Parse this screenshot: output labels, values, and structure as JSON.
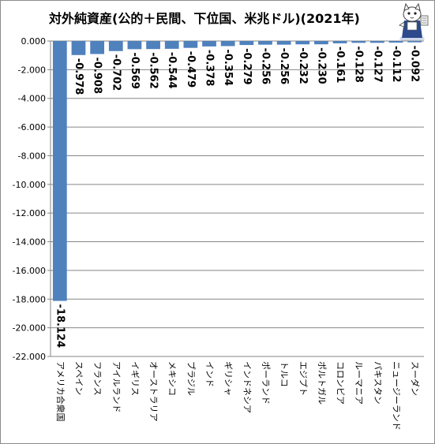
{
  "chart_data": {
    "type": "bar",
    "title": "対外純資産(公的＋民間、下位国、米兆ドル)(2021年)",
    "categories": [
      "アメリカ合衆国",
      "スペイン",
      "フランス",
      "アイルランド",
      "イギリス",
      "オーストラリア",
      "メキシコ",
      "ブラジル",
      "インド",
      "ギリシャ",
      "インドネシア",
      "ポーランド",
      "トルコ",
      "エジプト",
      "ポルトガル",
      "コロンビア",
      "ルーマニア",
      "パキスタン",
      "ニュージーランド",
      "スーダン"
    ],
    "values": [
      -18.124,
      -0.978,
      -0.908,
      -0.702,
      -0.569,
      -0.562,
      -0.544,
      -0.479,
      -0.378,
      -0.354,
      -0.279,
      -0.256,
      -0.256,
      -0.232,
      -0.23,
      -0.161,
      -0.128,
      -0.127,
      -0.112,
      -0.092
    ],
    "value_labels": [
      "-18.124",
      "-0.978",
      "-0.908",
      "-0.702",
      "-0.569",
      "-0.562",
      "-0.544",
      "-0.479",
      "-0.378",
      "-0.354",
      "-0.279",
      "-0.256",
      "-0.256",
      "-0.232",
      "-0.230",
      "-0.161",
      "-0.128",
      "-0.127",
      "-0.112",
      "-0.092"
    ],
    "ylim": [
      -22,
      0
    ],
    "yticks": [
      0,
      -2,
      -4,
      -6,
      -8,
      -10,
      -12,
      -14,
      -16,
      -18,
      -20,
      -22
    ],
    "ytick_labels": [
      "0.000",
      "-2.000",
      "-4.000",
      "-6.000",
      "-8.000",
      "-10.000",
      "-12.000",
      "-14.000",
      "-16.000",
      "-18.000",
      "-20.000",
      "-22.000"
    ],
    "grid": true,
    "bar_color": "#4f81bd",
    "grid_color": "#868686",
    "xlabel": "",
    "ylabel": ""
  },
  "mascot": {
    "icon": "cat-mascot-icon"
  }
}
